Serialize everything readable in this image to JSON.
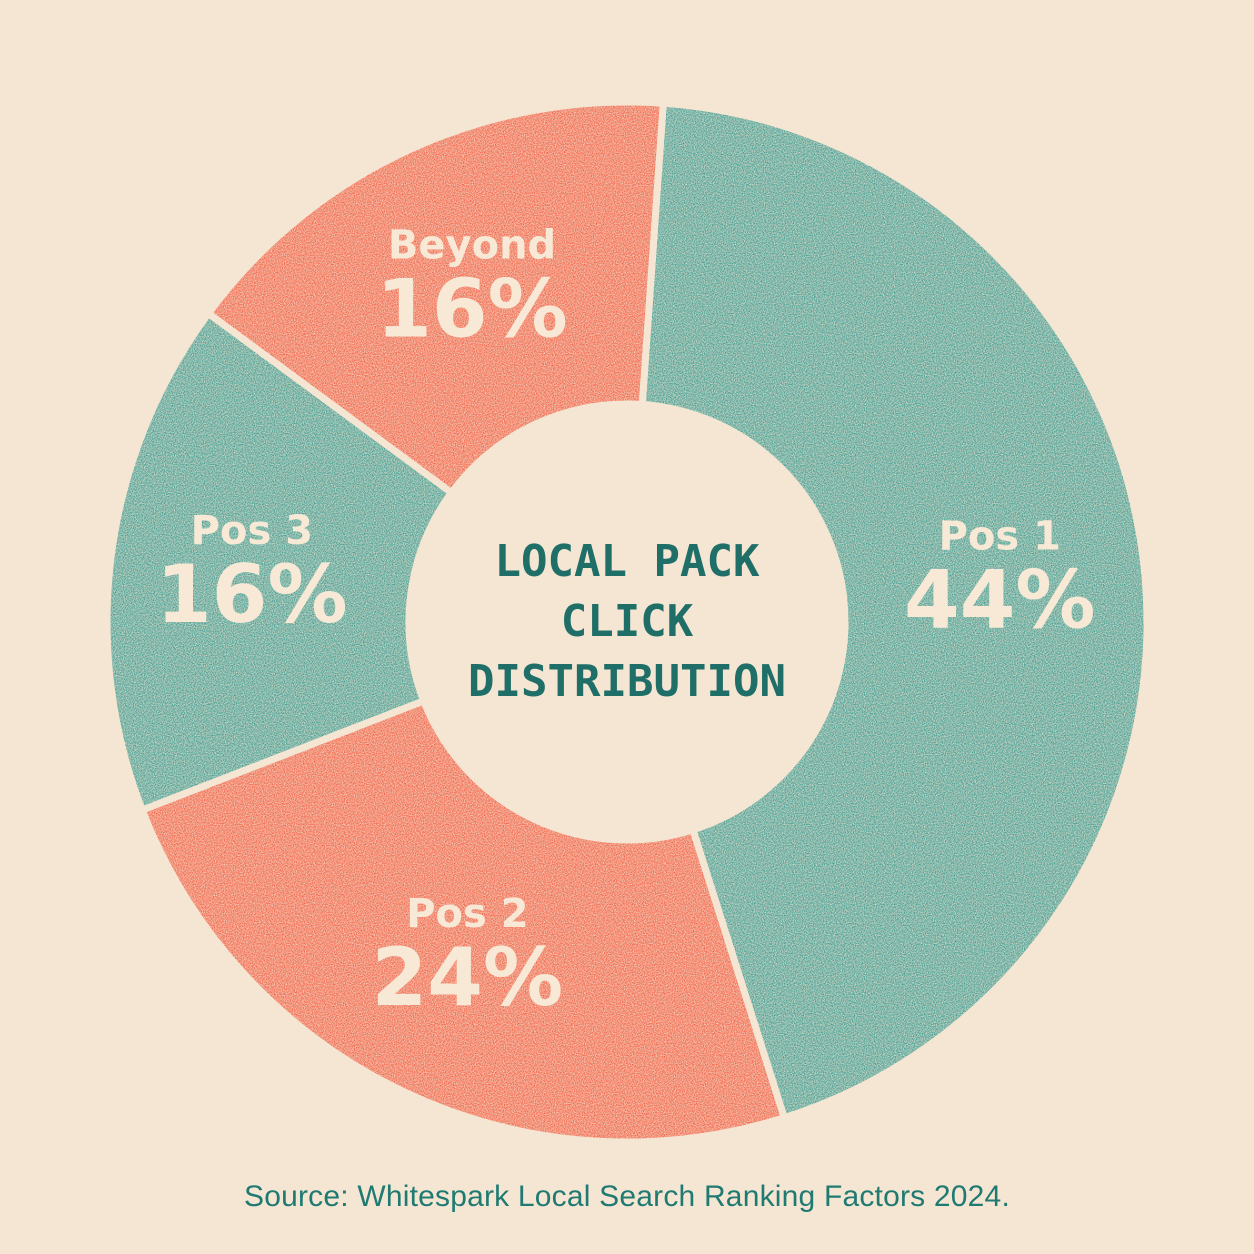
{
  "chart_data": {
    "type": "pie",
    "title": [
      "LOCAL PACK",
      "CLICK",
      "DISTRIBUTION"
    ],
    "slices": [
      {
        "label": "Pos 1",
        "value": 44,
        "value_label": "44%",
        "color": "#2e968d"
      },
      {
        "label": "Pos 2",
        "value": 24,
        "value_label": "24%",
        "color": "#f2553a"
      },
      {
        "label": "Pos 3",
        "value": 16,
        "value_label": "16%",
        "color": "#2e968d"
      },
      {
        "label": "Beyond",
        "value": 16,
        "value_label": "16%",
        "color": "#f2553a"
      }
    ],
    "style": "donut",
    "legend": "none"
  },
  "source": "Source: Whitespark Local Search Ranking Factors 2024.",
  "colors": {
    "background": "#f5e6d3",
    "teal": "#2e968d",
    "coral": "#f2553a",
    "label_text": "#f7e9d6",
    "title_text": "#1f6f68",
    "source_text": "#1f7a72"
  }
}
